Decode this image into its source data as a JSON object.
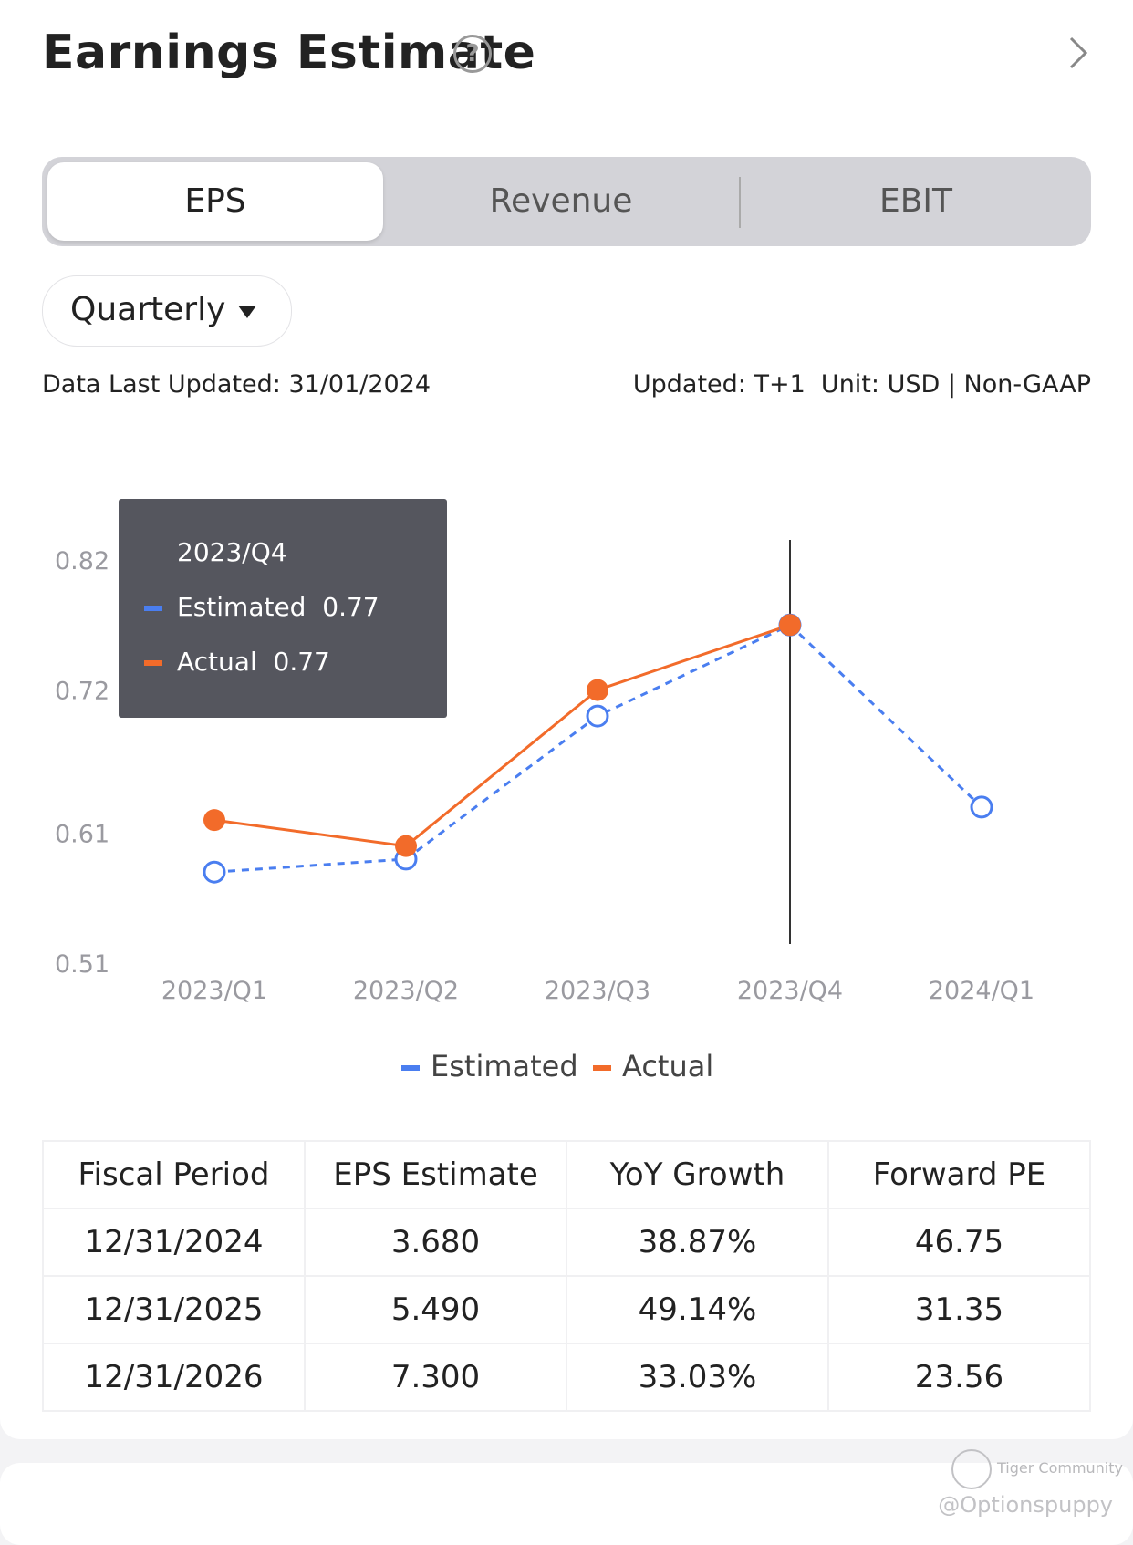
{
  "header": {
    "title": "Earnings Estimate"
  },
  "tabs": [
    {
      "label": "EPS",
      "active": true
    },
    {
      "label": "Revenue",
      "active": false
    },
    {
      "label": "EBIT",
      "active": false
    }
  ],
  "period_dropdown": {
    "selected": "Quarterly"
  },
  "meta": {
    "last_updated": "Data Last Updated: 31/01/2024",
    "update_info": "Updated: T+1  Unit: USD | Non-GAAP"
  },
  "colors": {
    "estimated": "#4a7ef0",
    "actual": "#f26b2a",
    "tooltip_bg": "#55565e"
  },
  "tooltip": {
    "period": "2023/Q4",
    "estimated_label": "Estimated",
    "estimated_value": "0.77",
    "actual_label": "Actual",
    "actual_value": "0.77"
  },
  "chart_data": {
    "type": "line",
    "categories": [
      "2023/Q1",
      "2023/Q2",
      "2023/Q3",
      "2023/Q4",
      "2024/Q1"
    ],
    "series": [
      {
        "name": "Estimated",
        "values": [
          0.58,
          0.59,
          0.7,
          0.77,
          0.63
        ]
      },
      {
        "name": "Actual",
        "values": [
          0.62,
          0.6,
          0.72,
          0.77,
          null
        ]
      }
    ],
    "yticks": [
      "0.82",
      "0.72",
      "0.61",
      "0.51"
    ],
    "ylim": [
      0.51,
      0.82
    ],
    "highlight_category": "2023/Q4",
    "legend": [
      "Estimated",
      "Actual"
    ],
    "legend_position": "bottom"
  },
  "table": {
    "headers": [
      "Fiscal Period",
      "EPS Estimate",
      "YoY Growth",
      "Forward PE"
    ],
    "rows": [
      [
        "12/31/2024",
        "3.680",
        "38.87%",
        "46.75"
      ],
      [
        "12/31/2025",
        "5.490",
        "49.14%",
        "31.35"
      ],
      [
        "12/31/2026",
        "7.300",
        "33.03%",
        "23.56"
      ]
    ]
  },
  "watermark": {
    "brand": "Tiger Community",
    "handle": "@Optionspuppy"
  }
}
